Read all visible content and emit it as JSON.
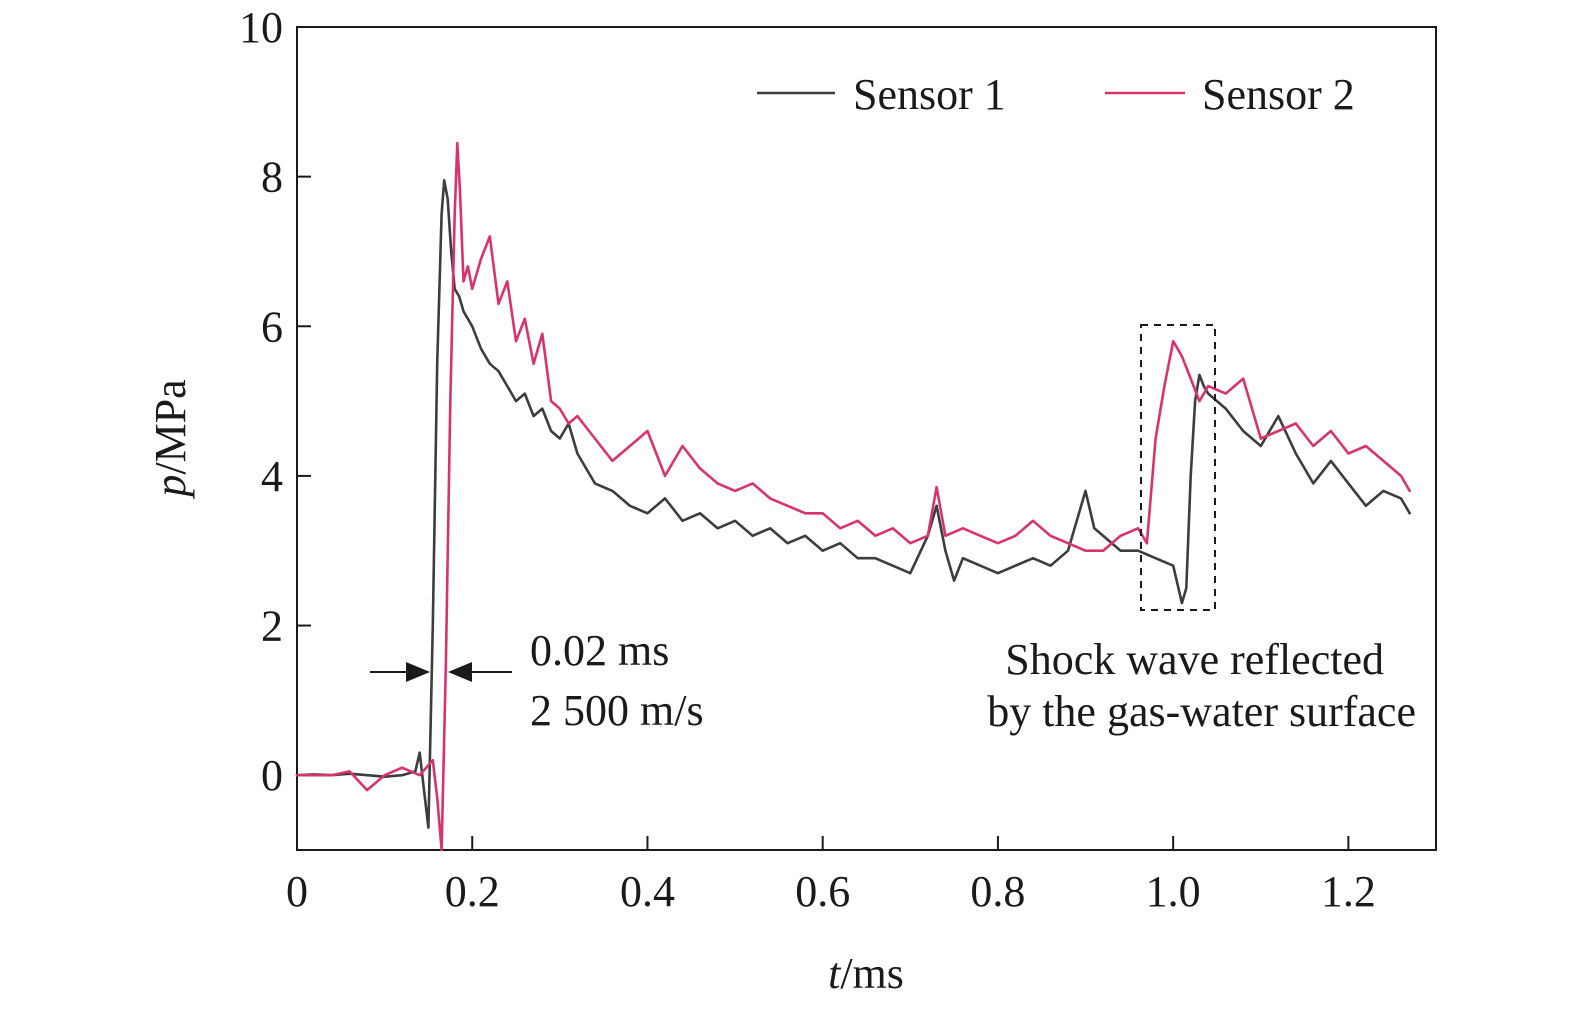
{
  "chart_data": {
    "type": "line",
    "xlabel": {
      "var": "t",
      "unit": "/ms"
    },
    "ylabel": {
      "var": "p",
      "unit": "/MPa"
    },
    "xlim": [
      0,
      1.3
    ],
    "ylim": [
      -1,
      10
    ],
    "xticks": [
      {
        "value": 0,
        "label": "0"
      },
      {
        "value": 0.2,
        "label": "0.2"
      },
      {
        "value": 0.4,
        "label": "0.4"
      },
      {
        "value": 0.6,
        "label": "0.6"
      },
      {
        "value": 0.8,
        "label": "0.8"
      },
      {
        "value": 1.0,
        "label": "1.0"
      },
      {
        "value": 1.2,
        "label": "1.2"
      }
    ],
    "yticks": [
      {
        "value": 0,
        "label": "0"
      },
      {
        "value": 2,
        "label": "2"
      },
      {
        "value": 4,
        "label": "4"
      },
      {
        "value": 6,
        "label": "6"
      },
      {
        "value": 8,
        "label": "8"
      },
      {
        "value": 10,
        "label": "10"
      }
    ],
    "grid": false,
    "legend_position": "top-right",
    "series": [
      {
        "name": "Sensor 1",
        "color": "#3d3d3d",
        "x": [
          0,
          0.02,
          0.04,
          0.06,
          0.08,
          0.1,
          0.12,
          0.135,
          0.14,
          0.145,
          0.15,
          0.155,
          0.16,
          0.165,
          0.168,
          0.172,
          0.176,
          0.18,
          0.185,
          0.19,
          0.2,
          0.21,
          0.22,
          0.23,
          0.24,
          0.25,
          0.26,
          0.27,
          0.28,
          0.29,
          0.3,
          0.31,
          0.32,
          0.33,
          0.34,
          0.36,
          0.38,
          0.4,
          0.42,
          0.44,
          0.46,
          0.48,
          0.5,
          0.52,
          0.54,
          0.56,
          0.58,
          0.6,
          0.62,
          0.64,
          0.66,
          0.68,
          0.7,
          0.72,
          0.73,
          0.74,
          0.75,
          0.76,
          0.78,
          0.8,
          0.82,
          0.84,
          0.86,
          0.88,
          0.9,
          0.91,
          0.92,
          0.94,
          0.96,
          0.98,
          1.0,
          1.01,
          1.015,
          1.02,
          1.025,
          1.03,
          1.035,
          1.04,
          1.06,
          1.08,
          1.1,
          1.12,
          1.14,
          1.16,
          1.18,
          1.2,
          1.22,
          1.24,
          1.26,
          1.27
        ],
        "y": [
          0,
          0.01,
          0,
          0.02,
          0,
          -0.02,
          0,
          0.05,
          0.3,
          -0.2,
          -0.7,
          2.0,
          5.5,
          7.5,
          7.95,
          7.7,
          7.0,
          6.5,
          6.4,
          6.2,
          6.0,
          5.7,
          5.5,
          5.4,
          5.2,
          5.0,
          5.1,
          4.8,
          4.9,
          4.6,
          4.5,
          4.7,
          4.3,
          4.1,
          3.9,
          3.8,
          3.6,
          3.5,
          3.7,
          3.4,
          3.5,
          3.3,
          3.4,
          3.2,
          3.3,
          3.1,
          3.2,
          3.0,
          3.1,
          2.9,
          2.9,
          2.8,
          2.7,
          3.2,
          3.6,
          3.0,
          2.6,
          2.9,
          2.8,
          2.7,
          2.8,
          2.9,
          2.8,
          3.0,
          3.8,
          3.3,
          3.2,
          3.0,
          3.0,
          2.9,
          2.8,
          2.3,
          2.5,
          4.0,
          5.0,
          5.35,
          5.2,
          5.1,
          4.9,
          4.6,
          4.4,
          4.8,
          4.3,
          3.9,
          4.2,
          3.9,
          3.6,
          3.8,
          3.7,
          3.5
        ]
      },
      {
        "name": "Sensor 2",
        "color": "#d9336e",
        "x": [
          0,
          0.02,
          0.04,
          0.06,
          0.08,
          0.1,
          0.12,
          0.14,
          0.155,
          0.16,
          0.165,
          0.17,
          0.175,
          0.18,
          0.183,
          0.186,
          0.19,
          0.195,
          0.2,
          0.21,
          0.22,
          0.23,
          0.24,
          0.25,
          0.26,
          0.27,
          0.28,
          0.29,
          0.3,
          0.31,
          0.32,
          0.34,
          0.36,
          0.38,
          0.4,
          0.42,
          0.44,
          0.46,
          0.48,
          0.5,
          0.52,
          0.54,
          0.56,
          0.58,
          0.6,
          0.62,
          0.64,
          0.66,
          0.68,
          0.7,
          0.72,
          0.73,
          0.74,
          0.76,
          0.78,
          0.8,
          0.82,
          0.84,
          0.86,
          0.88,
          0.9,
          0.92,
          0.94,
          0.96,
          0.97,
          0.98,
          0.99,
          1.0,
          1.01,
          1.02,
          1.03,
          1.04,
          1.06,
          1.08,
          1.1,
          1.12,
          1.14,
          1.16,
          1.18,
          1.2,
          1.22,
          1.24,
          1.26,
          1.27
        ],
        "y": [
          0,
          0,
          0,
          0.05,
          -0.2,
          0,
          0.1,
          0,
          0.2,
          -0.3,
          -1.0,
          1.5,
          5.0,
          7.5,
          8.45,
          7.8,
          6.6,
          6.8,
          6.5,
          6.9,
          7.2,
          6.3,
          6.6,
          5.8,
          6.1,
          5.5,
          5.9,
          5.0,
          4.9,
          4.7,
          4.8,
          4.5,
          4.2,
          4.4,
          4.6,
          4.0,
          4.4,
          4.1,
          3.9,
          3.8,
          3.9,
          3.7,
          3.6,
          3.5,
          3.5,
          3.3,
          3.4,
          3.2,
          3.3,
          3.1,
          3.2,
          3.85,
          3.2,
          3.3,
          3.2,
          3.1,
          3.2,
          3.4,
          3.2,
          3.1,
          3.0,
          3.0,
          3.2,
          3.3,
          3.1,
          4.5,
          5.2,
          5.8,
          5.6,
          5.3,
          5.0,
          5.2,
          5.1,
          5.3,
          4.5,
          4.6,
          4.7,
          4.4,
          4.6,
          4.3,
          4.4,
          4.2,
          4.0,
          3.8
        ]
      }
    ],
    "annotations": {
      "delay_line1": "0.02 ms",
      "delay_line2": "2 500 m/s",
      "reflect_line1": "Shock wave reflected",
      "reflect_line2": "by the gas-water surface"
    }
  }
}
